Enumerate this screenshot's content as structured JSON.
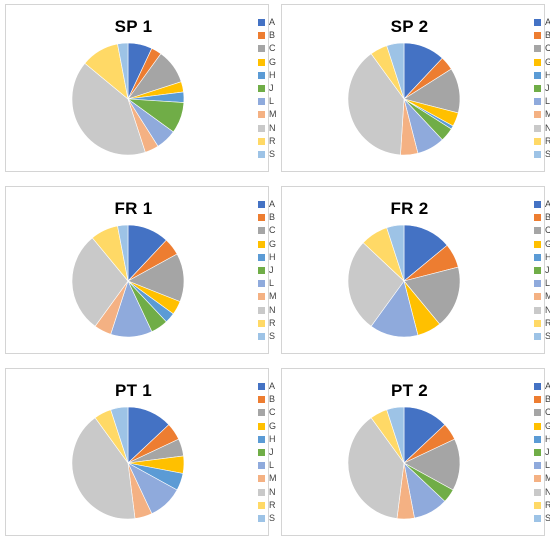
{
  "legend_labels": [
    "A",
    "B",
    "C",
    "G",
    "H",
    "J",
    "L",
    "M",
    "N",
    "R",
    "S"
  ],
  "colors": [
    "#4472c4",
    "#ed7d31",
    "#a5a5a5",
    "#ffc000",
    "#5b9bd5",
    "#70ad47",
    "#8faadc",
    "#f4b183",
    "#c9c9c9",
    "#ffd966",
    "#9dc3e6"
  ],
  "chart_data": [
    {
      "type": "pie",
      "title": "SP 1",
      "categories": [
        "A",
        "B",
        "C",
        "G",
        "H",
        "J",
        "L",
        "M",
        "N",
        "R",
        "S"
      ],
      "values": [
        7,
        3,
        10,
        3,
        3,
        9,
        6,
        4,
        41,
        11,
        3
      ]
    },
    {
      "type": "pie",
      "title": "SP 2",
      "categories": [
        "A",
        "B",
        "C",
        "G",
        "H",
        "J",
        "L",
        "M",
        "N",
        "R",
        "S"
      ],
      "values": [
        12,
        4,
        13,
        4,
        1,
        4,
        8,
        5,
        39,
        5,
        5
      ]
    },
    {
      "type": "pie",
      "title": "FR 1",
      "categories": [
        "A",
        "B",
        "C",
        "G",
        "H",
        "J",
        "L",
        "M",
        "N",
        "R",
        "S"
      ],
      "values": [
        12,
        5,
        14,
        4,
        3,
        5,
        12,
        5,
        29,
        8,
        3
      ]
    },
    {
      "type": "pie",
      "title": "FR 2",
      "categories": [
        "A",
        "B",
        "C",
        "G",
        "H",
        "J",
        "L",
        "M",
        "N",
        "R",
        "S"
      ],
      "values": [
        14,
        7,
        18,
        7,
        0,
        0,
        14,
        0,
        27,
        8,
        5
      ]
    },
    {
      "type": "pie",
      "title": "PT 1",
      "categories": [
        "A",
        "B",
        "C",
        "G",
        "H",
        "J",
        "L",
        "M",
        "N",
        "R",
        "S"
      ],
      "values": [
        13,
        5,
        5,
        5,
        5,
        0,
        10,
        5,
        42,
        5,
        5
      ]
    },
    {
      "type": "pie",
      "title": "PT 2",
      "categories": [
        "A",
        "B",
        "C",
        "G",
        "H",
        "J",
        "L",
        "M",
        "N",
        "R",
        "S"
      ],
      "values": [
        13,
        5,
        15,
        0,
        0,
        4,
        10,
        5,
        38,
        5,
        5
      ]
    }
  ]
}
